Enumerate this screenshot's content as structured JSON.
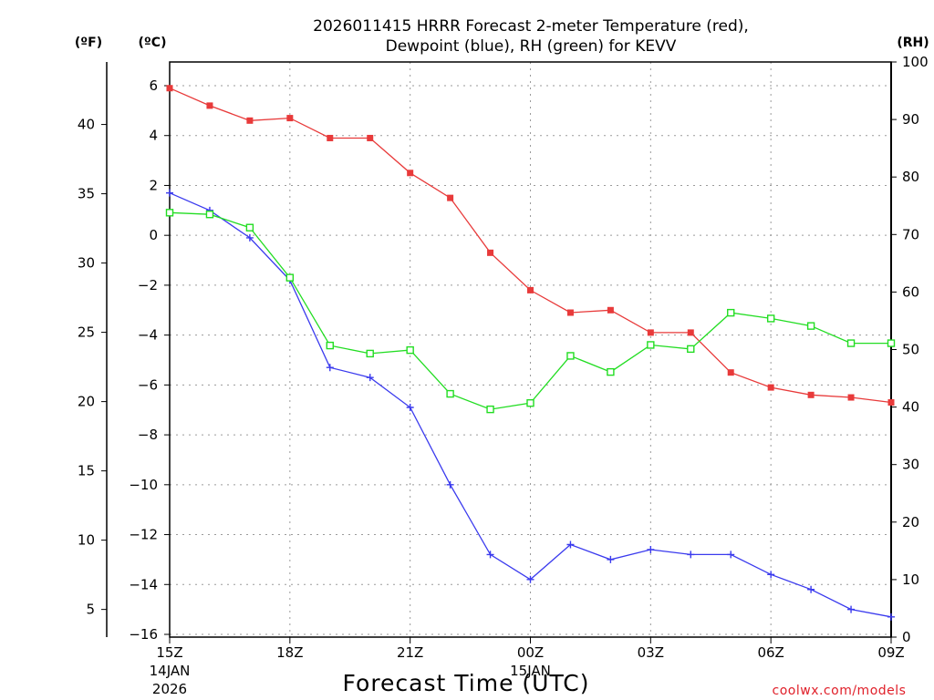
{
  "chart_data": {
    "type": "line",
    "title": "2026011415 HRRR Forecast 2-meter Temperature (red),",
    "subtitle": "Dewpoint (blue), RH (green) for KEVV",
    "xlabel": "Forecast Time (UTC)",
    "credit": "coolwx.com/models",
    "units": {
      "fahrenheit": "(ºF)",
      "celsius": "(ºC)",
      "rh": "(RH)"
    },
    "x_hours": [
      0,
      1,
      2,
      3,
      4,
      5,
      6,
      7,
      8,
      9,
      10,
      11,
      12,
      13,
      14,
      15,
      16,
      17,
      18
    ],
    "x_ticks": [
      {
        "hour": 0,
        "label": "15Z",
        "sub1": "14JAN",
        "sub2": "2026"
      },
      {
        "hour": 3,
        "label": "18Z",
        "sub1": "",
        "sub2": ""
      },
      {
        "hour": 6,
        "label": "21Z",
        "sub1": "",
        "sub2": ""
      },
      {
        "hour": 9,
        "label": "00Z",
        "sub1": "15JAN",
        "sub2": ""
      },
      {
        "hour": 12,
        "label": "03Z",
        "sub1": "",
        "sub2": ""
      },
      {
        "hour": 15,
        "label": "06Z",
        "sub1": "",
        "sub2": ""
      },
      {
        "hour": 18,
        "label": "09Z",
        "sub1": "",
        "sub2": ""
      }
    ],
    "ylim_c": [
      -16,
      7
    ],
    "y_ticks_c": [
      6,
      4,
      2,
      0,
      -2,
      -4,
      -6,
      -8,
      -10,
      -12,
      -14,
      -16
    ],
    "y_tick_labels_c": [
      "6",
      "4",
      "2",
      "0",
      "−2",
      "−4",
      "−6",
      "−8",
      "−10",
      "−12",
      "−14",
      "−16"
    ],
    "y_ticks_f": [
      40,
      35,
      30,
      25,
      20,
      15,
      10,
      5
    ],
    "y_tick_labels_f": [
      "40",
      "35",
      "30",
      "25",
      "20",
      "15",
      "10",
      "5"
    ],
    "ylim_rh": [
      0,
      100
    ],
    "y_ticks_rh": [
      100,
      90,
      80,
      70,
      60,
      50,
      40,
      30,
      20,
      10,
      0
    ],
    "y_tick_labels_rh": [
      "100",
      "90",
      "80",
      "70",
      "60",
      "50",
      "40",
      "30",
      "20",
      "10",
      "0"
    ],
    "series": [
      {
        "name": "2-meter Temperature",
        "axis": "celsius",
        "color": "#e83a3a",
        "marker": "filled-square",
        "values": [
          5.9,
          5.2,
          4.6,
          4.7,
          3.9,
          3.9,
          2.5,
          1.5,
          -0.7,
          -2.2,
          -3.1,
          -3.0,
          -3.9,
          -3.9,
          -5.5,
          -6.1,
          -6.4,
          -6.5,
          -6.7
        ]
      },
      {
        "name": "Dewpoint",
        "axis": "celsius",
        "color": "#3a3aee",
        "marker": "plus",
        "values": [
          1.7,
          1.0,
          -0.1,
          -1.8,
          -5.3,
          -5.7,
          -6.9,
          -10.0,
          -12.8,
          -13.8,
          -12.4,
          -13.0,
          -12.6,
          -12.8,
          -12.8,
          -13.6,
          -14.2,
          -15.0,
          -15.3
        ]
      },
      {
        "name": "RH",
        "axis": "rh",
        "color": "#22dd22",
        "marker": "open-square",
        "values": [
          73.8,
          73.5,
          71.2,
          62.5,
          50.7,
          49.3,
          49.9,
          42.3,
          39.6,
          40.7,
          48.9,
          46.1,
          50.8,
          50.1,
          56.4,
          55.4,
          54.1,
          51.1,
          51.1
        ]
      }
    ]
  }
}
